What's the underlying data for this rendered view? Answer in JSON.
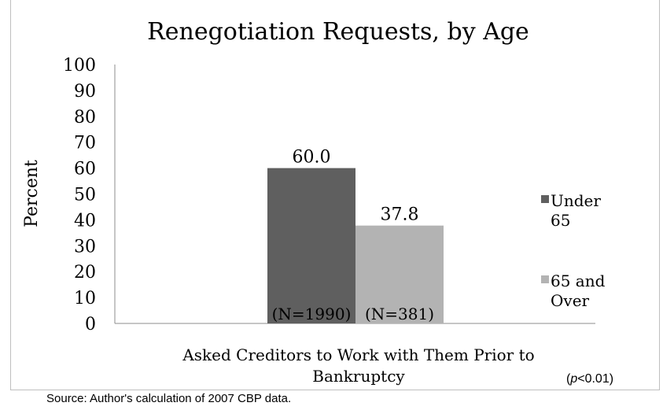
{
  "chart_data": {
    "type": "bar",
    "title": "Renegotiation Requests, by Age",
    "categories": [
      "Asked Creditors to Work with Them Prior to Bankruptcy"
    ],
    "category_lines": [
      "Asked Creditors to Work with Them Prior to",
      "Bankruptcy"
    ],
    "series": [
      {
        "name": "Under 65",
        "legend_lines": [
          "Under",
          "65"
        ],
        "values": [
          60.0
        ],
        "value_label": "60.0",
        "n_label": "(N=1990)",
        "color": "#5f5f5f"
      },
      {
        "name": "65 and Over",
        "legend_lines": [
          "65 and",
          "Over"
        ],
        "values": [
          37.8
        ],
        "value_label": "37.8",
        "n_label": "(N=381)",
        "color": "#b3b3b3"
      }
    ],
    "xlabel": "",
    "ylabel": "Percent",
    "ylim": [
      0,
      100
    ],
    "yticks": [
      "0",
      "10",
      "20",
      "30",
      "40",
      "50",
      "60",
      "70",
      "80",
      "90",
      "100"
    ],
    "grid": false,
    "legend_position": "right",
    "significance_note": "(p<0.01)",
    "significance_parts": {
      "open": "(",
      "italic": "p",
      "rest": "<0.01)"
    }
  },
  "source_note": "Source:  Author's calculation of 2007 CBP data."
}
